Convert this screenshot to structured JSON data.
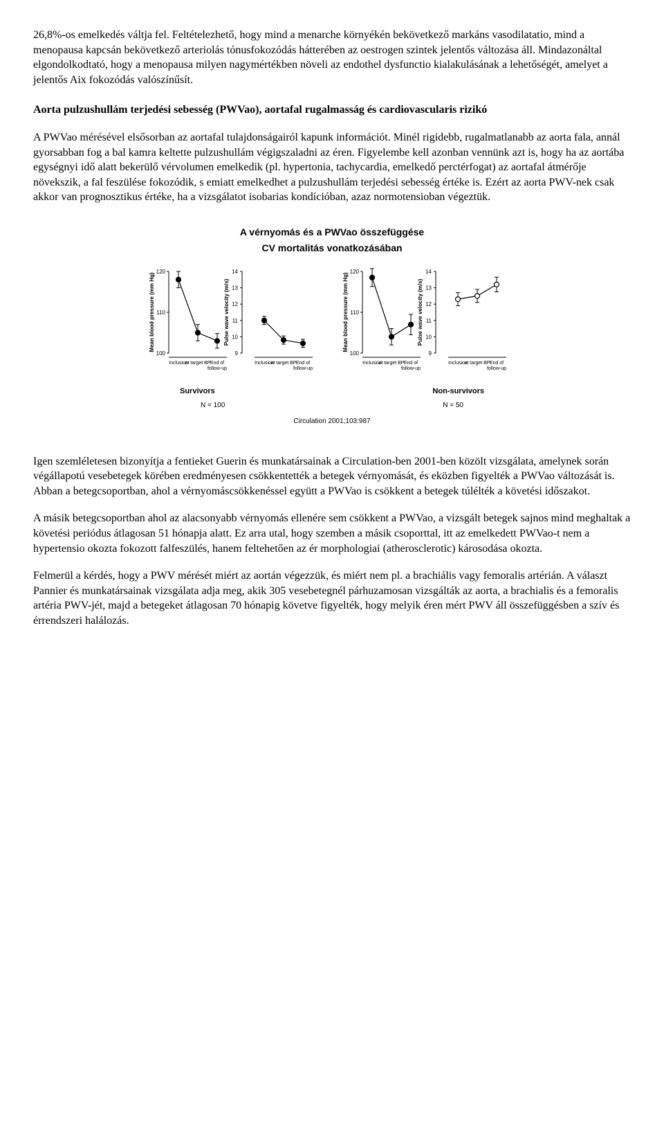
{
  "paragraphs": {
    "p1": "26,8%-os emelkedés váltja fel. Feltételezhető, hogy mind a menarche környékén bekövetkező markáns vasodilatatio, mind a menopausa kapcsán bekövetkező arteriolás tónusfokozódás hátterében az oestrogen szintek jelentős változása áll. Mindazonáltal elgondolkodtató, hogy a menopausa milyen nagymértékben növeli az endothel dysfunctio kialakulásának a lehetőségét, amelyet a jelentős Aix fokozódás valószínűsít.",
    "heading": "Aorta pulzushullám terjedési sebesség (PWVao), aortafal rugalmasság és cardiovascularis rizikó",
    "p2": "A PWVao mérésével elsősorban az aortafal tulajdonságairól kapunk információt. Minél rigidebb, rugalmatlanabb az aorta fala, annál gyorsabban fog a bal kamra keltette pulzushullám végigszaladni az éren. Figyelembe kell azonban vennünk azt is, hogy ha az aortába egységnyi idő alatt bekerülő vérvolumen emelkedik (pl. hypertonia, tachycardia, emelkedő perctérfogat) az aortafal átmérője növekszik, a fal feszülése fokozódik, s emiatt emelkedhet a pulzushullám terjedési sebesség értéke is. Ezért az aorta PWV-nek csak akkor van prognosztikus értéke, ha a vizsgálatot isobarias kondícióban, azaz normotensioban végeztük.",
    "p3": "Igen szemléletesen bizonyítja a fentieket Guerin és munkatársainak a Circulation-ben 2001-ben közölt vizsgálata, amelynek során végállapotú vesebetegek körében eredményesen csökkentették a betegek vérnyomását, és eközben figyelték a PWVao változását is. Abban a betegcsoportban, ahol a vérnyomáscsökkenéssel együtt a PWVao is csökkent a betegek túlélték a követési időszakot.",
    "p4": "A másik betegcsoportban ahol az alacsonyabb vérnyomás ellenére sem csökkent a PWVao, a vizsgált betegek sajnos mind meghaltak a követési periódus átlagosan 51 hónapja alatt. Ez arra utal, hogy szemben a másik csoporttal, itt az emelkedett PWVao-t nem a hypertensio okozta fokozott falfeszülés, hanem feltehetően az ér morphologiai (atherosclerotic) károsodása okozta.",
    "p5": "Felmerül a kérdés, hogy a PWV mérését miért az aortán végezzük, és miért nem pl. a brachiális vagy femoralis artérián. A választ Pannier és munkatársainak vizsgálata adja meg, akik 305 vesebetegnél párhuzamosan vizsgálták az aorta, a brachialis és a femoralis artéria PWV-jét, majd a betegeket átlagosan 70 hónapig követve figyelték, hogy melyik éren mért PWV áll összefüggésben a szív és érrendszeri halálozás."
  },
  "figure": {
    "title": "A vérnyomás és a PWVao összefüggése",
    "subtitle": "CV mortalitás vonatkozásában",
    "leftAxisLabel": "Mean blood pressure (mm Hg)",
    "rightAxisLabel": "Pulse wave velocity (m/s)",
    "xcats": [
      "Inclusion",
      "at target BP",
      "End of\nfollow-up"
    ],
    "survivors": {
      "label": "Survivors",
      "nLabel": "N = 100",
      "bp": {
        "values": [
          118,
          105,
          103
        ],
        "err": [
          2.0,
          2.0,
          1.8
        ],
        "ylim": [
          100,
          120
        ],
        "yticks": [
          100,
          110,
          120
        ],
        "marker": "closed"
      },
      "pwv": {
        "values": [
          11.0,
          9.8,
          9.6
        ],
        "err": [
          0.25,
          0.25,
          0.25
        ],
        "ylim": [
          9,
          14
        ],
        "yticks": [
          9,
          10,
          11,
          12,
          13,
          14
        ],
        "marker": "closed"
      }
    },
    "nonsurvivors": {
      "label": "Non-survivors",
      "nLabel": "N = 50",
      "bp": {
        "values": [
          118.5,
          104,
          107
        ],
        "err": [
          2.2,
          2.0,
          2.5
        ],
        "ylim": [
          100,
          120
        ],
        "yticks": [
          100,
          110,
          120
        ],
        "marker": "closed"
      },
      "pwv": {
        "values": [
          12.3,
          12.5,
          13.2
        ],
        "err": [
          0.4,
          0.4,
          0.45
        ],
        "ylim": [
          9,
          14
        ],
        "yticks": [
          9,
          10,
          11,
          12,
          13,
          14
        ],
        "marker": "open"
      }
    },
    "citation": "Circulation 2001;103:987",
    "colors": {
      "line": "#000000",
      "bg": "#ffffff"
    },
    "lineWidth": 1.2,
    "markerRadius": 3.5
  }
}
